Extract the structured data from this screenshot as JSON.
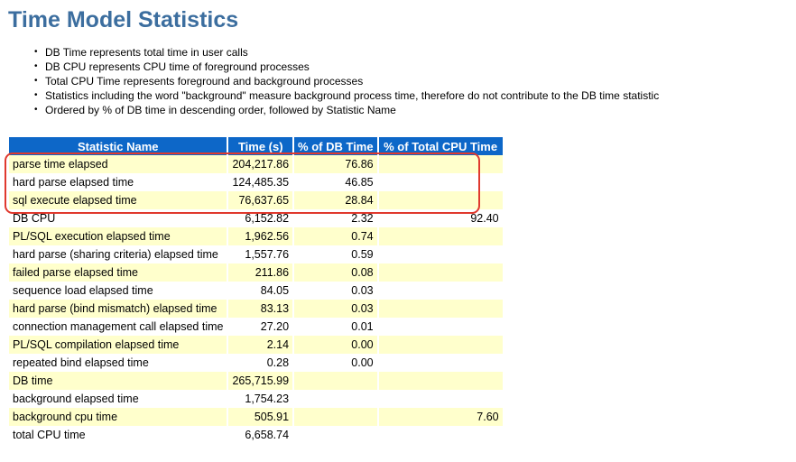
{
  "page": {
    "title": "Time Model Statistics"
  },
  "notes": [
    "DB Time represents total time in user calls",
    "DB CPU represents CPU time of foreground processes",
    "Total CPU Time represents foreground and background processes",
    "Statistics including the word \"background\" measure background process time, therefore do not contribute to the DB time statistic",
    "Ordered by % of DB time in descending order, followed by Statistic Name"
  ],
  "table": {
    "columns": [
      "Statistic Name",
      "Time (s)",
      "% of DB Time",
      "% of Total CPU Time"
    ],
    "rows": [
      {
        "name": "parse time elapsed",
        "time": "204,217.86",
        "pct_db_time": "76.86",
        "pct_total_cpu": ""
      },
      {
        "name": "hard parse elapsed time",
        "time": "124,485.35",
        "pct_db_time": "46.85",
        "pct_total_cpu": ""
      },
      {
        "name": "sql execute elapsed time",
        "time": "76,637.65",
        "pct_db_time": "28.84",
        "pct_total_cpu": ""
      },
      {
        "name": "DB CPU",
        "time": "6,152.82",
        "pct_db_time": "2.32",
        "pct_total_cpu": "92.40"
      },
      {
        "name": "PL/SQL execution elapsed time",
        "time": "1,962.56",
        "pct_db_time": "0.74",
        "pct_total_cpu": ""
      },
      {
        "name": "hard parse (sharing criteria) elapsed time",
        "time": "1,557.76",
        "pct_db_time": "0.59",
        "pct_total_cpu": ""
      },
      {
        "name": "failed parse elapsed time",
        "time": "211.86",
        "pct_db_time": "0.08",
        "pct_total_cpu": ""
      },
      {
        "name": "sequence load elapsed time",
        "time": "84.05",
        "pct_db_time": "0.03",
        "pct_total_cpu": ""
      },
      {
        "name": "hard parse (bind mismatch) elapsed time",
        "time": "83.13",
        "pct_db_time": "0.03",
        "pct_total_cpu": ""
      },
      {
        "name": "connection management call elapsed time",
        "time": "27.20",
        "pct_db_time": "0.01",
        "pct_total_cpu": ""
      },
      {
        "name": "PL/SQL compilation elapsed time",
        "time": "2.14",
        "pct_db_time": "0.00",
        "pct_total_cpu": ""
      },
      {
        "name": "repeated bind elapsed time",
        "time": "0.28",
        "pct_db_time": "0.00",
        "pct_total_cpu": ""
      },
      {
        "name": "DB time",
        "time": "265,715.99",
        "pct_db_time": "",
        "pct_total_cpu": ""
      },
      {
        "name": "background elapsed time",
        "time": "1,754.23",
        "pct_db_time": "",
        "pct_total_cpu": ""
      },
      {
        "name": "background cpu time",
        "time": "505.91",
        "pct_db_time": "",
        "pct_total_cpu": "7.60"
      },
      {
        "name": "total CPU time",
        "time": "6,658.74",
        "pct_db_time": "",
        "pct_total_cpu": ""
      }
    ]
  },
  "annotation": {
    "type": "red-highlight-box",
    "color": "#e0392e",
    "rows_covered": [
      "parse time elapsed",
      "hard parse elapsed time",
      "sql execute elapsed time"
    ]
  },
  "colors": {
    "title_text": "#3c6e9f",
    "header_bg": "#0d67c8",
    "header_text": "#ffffff",
    "row_alt_bg": "#ffffcc",
    "annotation_red": "#e0392e"
  }
}
